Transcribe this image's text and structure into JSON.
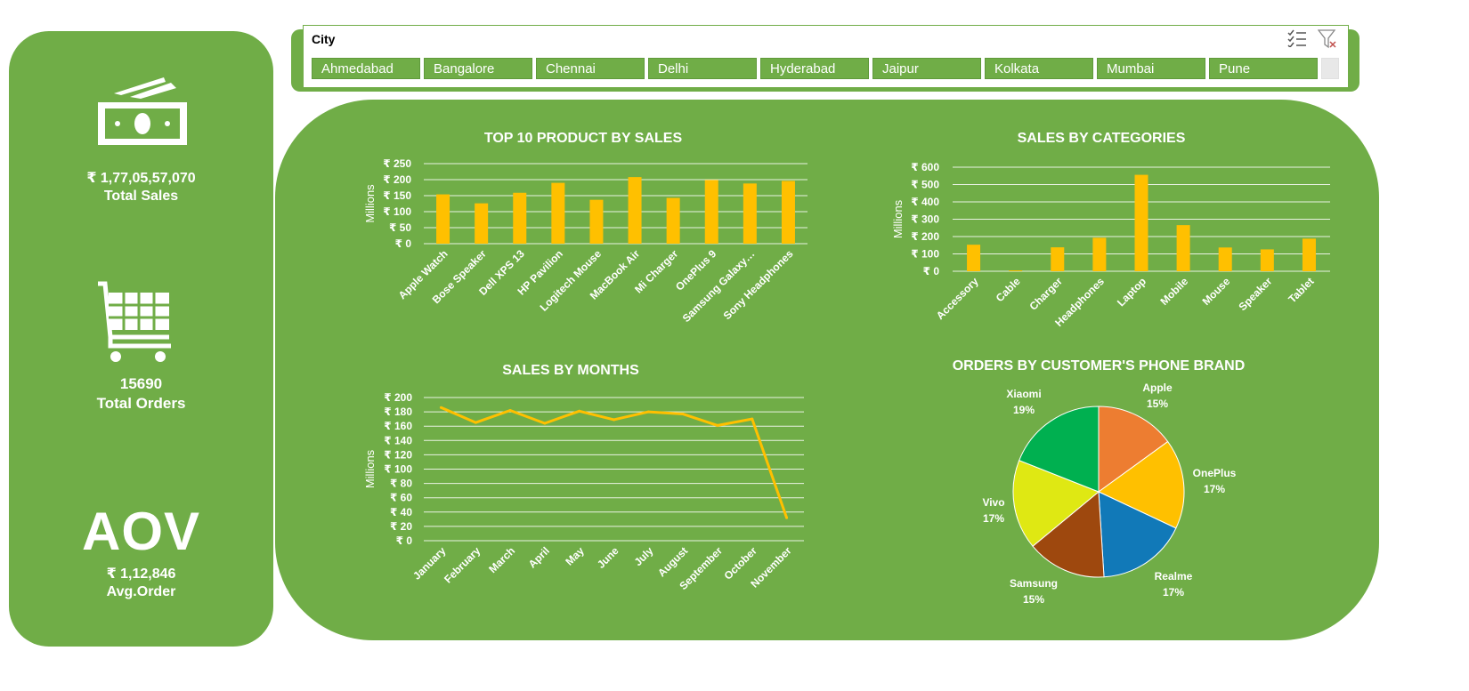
{
  "kpis": {
    "total_sales": {
      "value": "₹ 1,77,05,57,070",
      "label": "Total Sales"
    },
    "total_orders": {
      "value": "15690",
      "label": "Total Orders"
    },
    "aov": {
      "big": "AOV",
      "value": "₹ 1,12,846",
      "label": "Avg.Order"
    }
  },
  "slicer": {
    "title": "City",
    "cities": [
      "Ahmedabad",
      "Bangalore",
      "Chennai",
      "Delhi",
      "Hyderabad",
      "Jaipur",
      "Kolkata",
      "Mumbai",
      "Pune"
    ]
  },
  "colors": {
    "panel_green": "#70ad47",
    "bar_yellow": "#ffc000",
    "grid": "#ffffff"
  },
  "chart_data": [
    {
      "type": "bar",
      "title": "TOP 10 PRODUCT BY SALES",
      "ylabel": "Millions",
      "categories": [
        "Apple Watch",
        "Bose Speaker",
        "Dell XPS 13",
        "HP Pavilion",
        "Logitech Mouse",
        "MacBook Air",
        "Mi Charger",
        "OnePlus 9",
        "Samsung Galaxy…",
        "Sony Headphones"
      ],
      "values": [
        154,
        126,
        159,
        190,
        137,
        208,
        143,
        199,
        188,
        196
      ],
      "ylim": [
        0,
        250
      ],
      "yticks": [
        "₹ 0",
        "₹ 50",
        "₹ 100",
        "₹ 150",
        "₹ 200",
        "₹ 250"
      ],
      "grid": true
    },
    {
      "type": "bar",
      "title": "SALES BY CATEGORIES",
      "ylabel": "Millions",
      "categories": [
        "Accessory",
        "Cable",
        "Charger",
        "Headphones",
        "Laptop",
        "Mobile",
        "Mouse",
        "Speaker",
        "Tablet"
      ],
      "values": [
        153,
        5,
        138,
        193,
        556,
        266,
        137,
        126,
        188
      ],
      "ylim": [
        0,
        600
      ],
      "yticks": [
        "₹ 0",
        "₹ 100",
        "₹ 200",
        "₹ 300",
        "₹ 400",
        "₹ 500",
        "₹ 600"
      ],
      "grid": true
    },
    {
      "type": "line",
      "title": "SALES BY MONTHS",
      "ylabel": "Millions",
      "categories": [
        "January",
        "February",
        "March",
        "April",
        "May",
        "June",
        "July",
        "August",
        "September",
        "October",
        "November"
      ],
      "values": [
        186,
        165,
        182,
        164,
        181,
        169,
        180,
        177,
        161,
        170,
        32
      ],
      "ylim": [
        0,
        200
      ],
      "yticks": [
        "₹ 0",
        "₹ 20",
        "₹ 40",
        "₹ 60",
        "₹ 80",
        "₹ 100",
        "₹ 120",
        "₹ 140",
        "₹ 160",
        "₹ 180",
        "₹ 200"
      ],
      "grid": true
    },
    {
      "type": "pie",
      "title": "ORDERS BY CUSTOMER'S PHONE BRAND",
      "slices": [
        {
          "label": "Apple",
          "pct": "15%",
          "value": 15,
          "color": "#ed7d31"
        },
        {
          "label": "OnePlus",
          "pct": "17%",
          "value": 17,
          "color": "#ffc000"
        },
        {
          "label": "Realme",
          "pct": "17%",
          "value": 17,
          "color": "#1179b8"
        },
        {
          "label": "Samsung",
          "pct": "15%",
          "value": 15,
          "color": "#9e480e"
        },
        {
          "label": "Vivo",
          "pct": "17%",
          "value": 17,
          "color": "#dfe813"
        },
        {
          "label": "Xiaomi",
          "pct": "19%",
          "value": 19,
          "color": "#00b050"
        }
      ]
    }
  ]
}
